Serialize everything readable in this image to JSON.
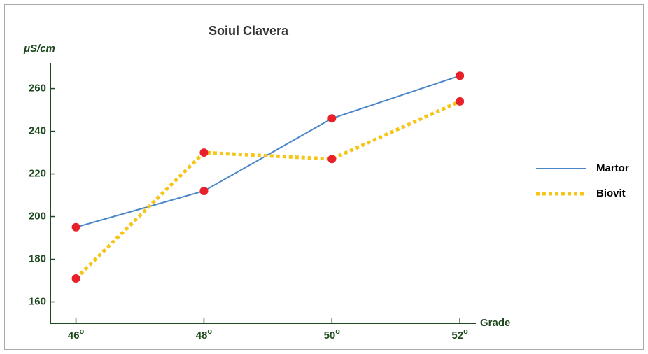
{
  "chart_data": {
    "type": "line",
    "title": "Soiul Clavera",
    "ylabel": "μS/cm",
    "xlabel": "Grade",
    "x": [
      46,
      48,
      50,
      52
    ],
    "series": [
      {
        "name": "Martor",
        "color": "#4a86c8",
        "values": [
          195,
          212,
          246,
          266
        ]
      },
      {
        "name": "Biovit",
        "color": "#f5c518",
        "values": [
          171,
          230,
          227,
          254
        ]
      }
    ],
    "marker_color": "#e8202a",
    "xlim": [
      45.6,
      52.25
    ],
    "xticks": [
      {
        "value": 46,
        "label": "46o"
      },
      {
        "value": 48,
        "label": "48o"
      },
      {
        "value": 50,
        "label": "50o"
      },
      {
        "value": 52,
        "label": "52o"
      }
    ],
    "ylim": [
      150,
      272
    ],
    "yticks": [
      160,
      180,
      200,
      220,
      240,
      260
    ],
    "legend": "right"
  }
}
